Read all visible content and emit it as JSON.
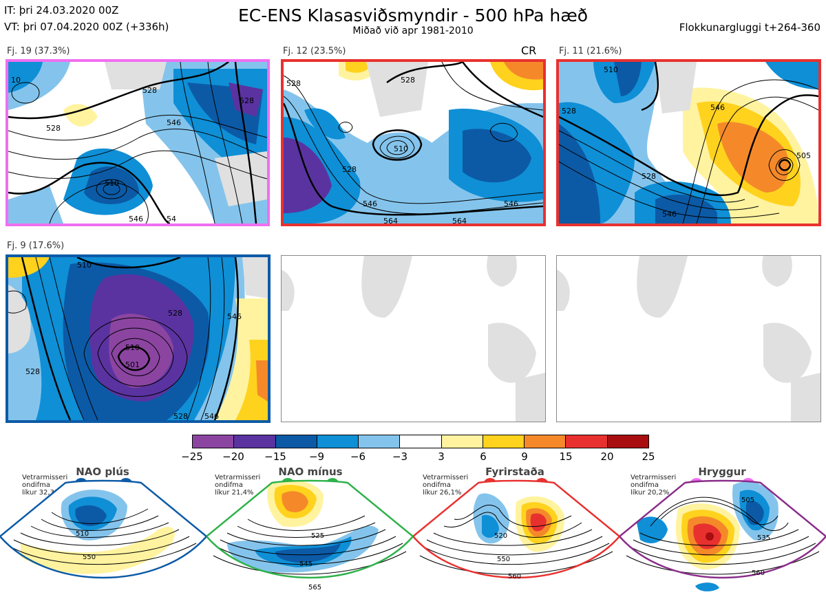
{
  "header": {
    "it_line": "IT: þri 24.03.2020 00Z",
    "vt_line": "VT: þri 07.04.2020 00Z  (+336h)",
    "title": "EC-ENS Klasasviðsmyndir - 500 hPa hæð",
    "subtitle": "Miðað við apr 1981-2010",
    "window": "Flokkunargluggi t+264-360"
  },
  "panels": [
    {
      "label": "Fj. 19 (37.3%)",
      "border": "#ef6ff0",
      "contours": [
        "510",
        "528",
        "528",
        "546",
        "546",
        "54",
        "10",
        "528"
      ]
    },
    {
      "label": "Fj. 12 (23.5%)",
      "border": "#e8312f",
      "badge": "CR",
      "contours": [
        "528",
        "528",
        "510",
        "528",
        "546",
        "546",
        "564",
        "564"
      ]
    },
    {
      "label": "Fj. 11 (21.6%)",
      "border": "#e8312f",
      "contours": [
        "510",
        "528",
        "528",
        "546",
        "546",
        "505"
      ]
    },
    {
      "label": "Fj. 9 (17.6%)",
      "border": "#0c5aa6",
      "contours": [
        "510",
        "528",
        "528",
        "546",
        "510",
        "528",
        "546",
        "501"
      ]
    },
    {
      "label": "",
      "border": "",
      "contours": []
    },
    {
      "label": "",
      "border": "",
      "contours": []
    }
  ],
  "colorbar": {
    "ticks": [
      "−25",
      "−20",
      "−15",
      "−9",
      "−6",
      "−3",
      "3",
      "6",
      "9",
      "15",
      "20",
      "25"
    ],
    "colors": [
      "#8b45a1",
      "#5a33a0",
      "#0c5aa6",
      "#0f8fd6",
      "#84c4ec",
      "#ffffff",
      "#fff3a0",
      "#ffd21e",
      "#f5892a",
      "#e8312f",
      "#a80d10"
    ]
  },
  "regimes": [
    {
      "name": "NAO plús",
      "note": [
        "Vetrarmisseri",
        "ondifma",
        "líkur 32,3%"
      ],
      "color": "#0c5aa6",
      "contours": [
        "510",
        "550"
      ]
    },
    {
      "name": "NAO mínus",
      "note": [
        "Vetrarmisseri",
        "ondifma",
        "líkur 21,4%"
      ],
      "color": "#2eb24a",
      "contours": [
        "525",
        "545",
        "565"
      ]
    },
    {
      "name": "Fyrirstaða",
      "note": [
        "Vetrarmisseri",
        "ondifma",
        "líkur 26,1%"
      ],
      "color": "#e8312f",
      "contours": [
        "520",
        "550",
        "560"
      ]
    },
    {
      "name": "Hryggur",
      "note": [
        "Vetrarmisseri",
        "ondifma",
        "líkur 20,2%"
      ],
      "color": "#ef6ff0",
      "contours": [
        "505",
        "535",
        "560"
      ]
    }
  ]
}
